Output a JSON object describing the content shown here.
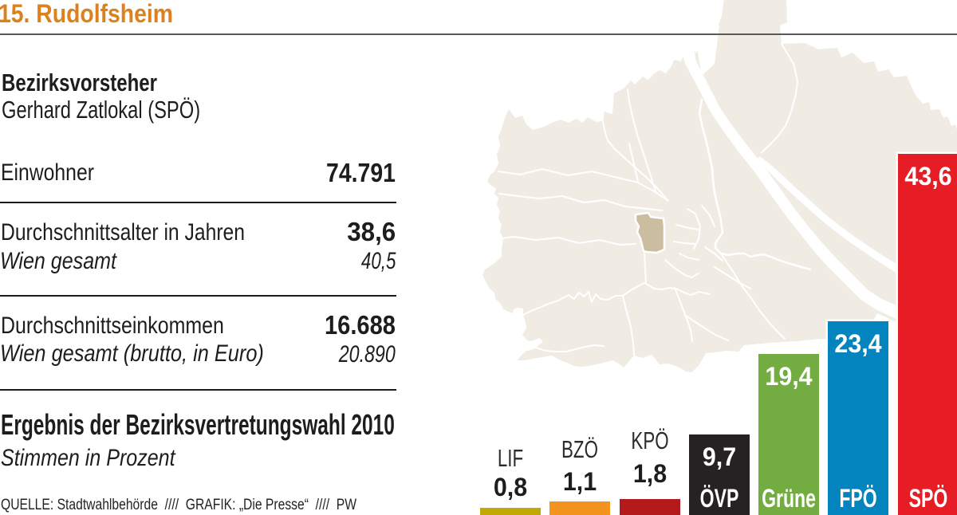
{
  "title": "15. Rudolfsheim",
  "info": {
    "leader_label": "Bezirksvorsteher",
    "leader_name": "Gerhard Zatlokal (SPÖ)",
    "rows": [
      {
        "label": "Einwohner",
        "value": "74.791"
      },
      {
        "label": "Durchschnittsalter in Jahren",
        "value": "38,6",
        "sub_label": "Wien gesamt",
        "sub_value": "40,5"
      },
      {
        "label": "Durchschnittseinkommen",
        "value": "16.688",
        "sub_label": "Wien gesamt (brutto, in Euro)",
        "sub_value": "20.890"
      }
    ]
  },
  "section": {
    "heading": "Ergebnis der Bezirksvertretungswahl 2010",
    "subheading": "Stimmen in Prozent"
  },
  "footer": "QUELLE: Stadtwahlbehörde  ////  GRAFIK: „Die Presse“  ////  PW",
  "map": {
    "name": "vienna-district-map",
    "highlighted_district": "15. Rudolfsheim",
    "base_color": "#f0ece4",
    "highlight_color": "#cbbea0",
    "border_color": "#ffffff"
  },
  "colors": {
    "accent_orange": "#db821e",
    "rule_gray": "#59585a",
    "text_black": "#1d1d1b"
  },
  "chart_data": {
    "type": "bar",
    "title": "Ergebnis der Bezirksvertretungswahl 2010",
    "ylabel": "Stimmen in Prozent",
    "categories": [
      "LIF",
      "BZÖ",
      "KPÖ",
      "ÖVP",
      "Grüne",
      "FPÖ",
      "SPÖ"
    ],
    "values": [
      0.8,
      1.1,
      1.8,
      9.7,
      19.4,
      23.4,
      43.6
    ],
    "value_labels": [
      "0,8",
      "1,1",
      "1,8",
      "9,7",
      "19,4",
      "23,4",
      "43,6"
    ],
    "colors": [
      "#c2a904",
      "#f2941d",
      "#b4191b",
      "#262123",
      "#73ad41",
      "#0384be",
      "#e71d25"
    ],
    "label_inside": [
      false,
      false,
      false,
      true,
      true,
      true,
      true
    ],
    "legend_position": "none",
    "grid": false
  }
}
